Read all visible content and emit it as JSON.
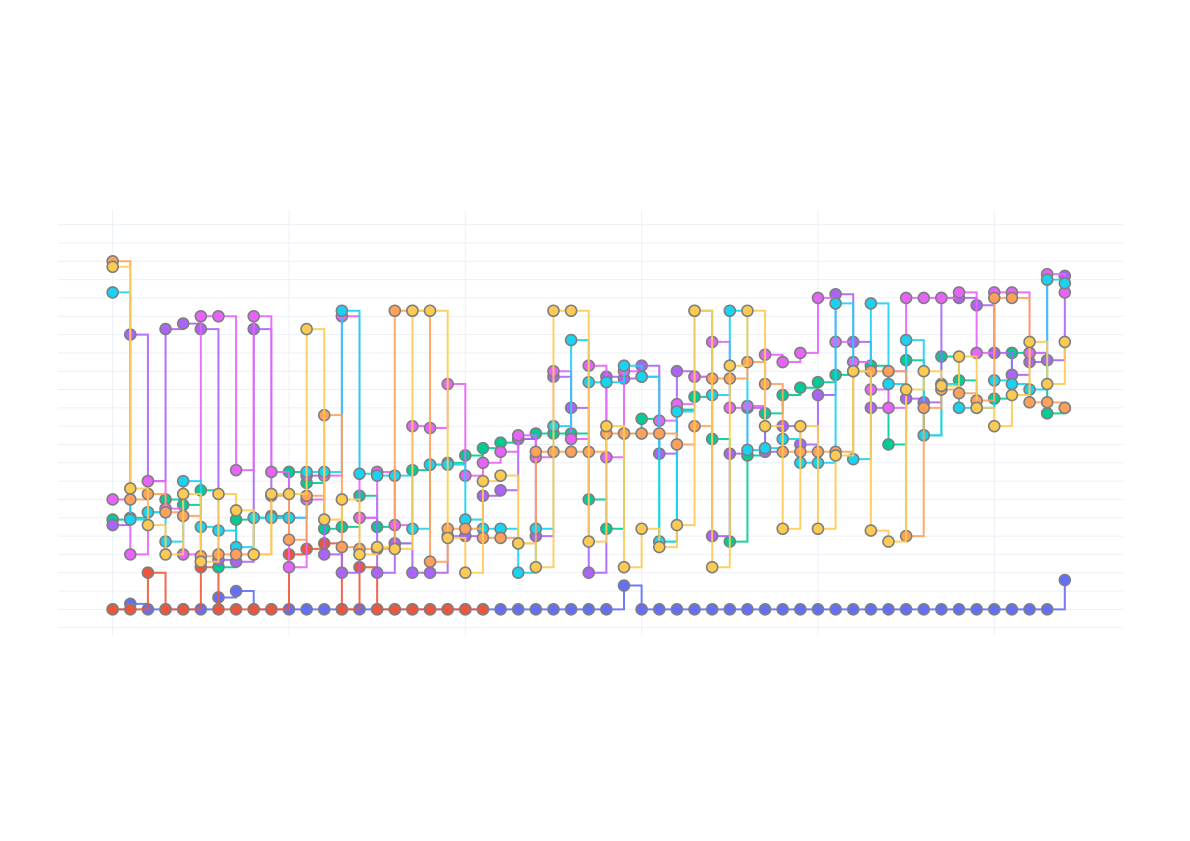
{
  "chart_data": {
    "type": "line",
    "line_shape": "step-hv",
    "markers": true,
    "marker_outline_color": "#7f7f7f",
    "grid": true,
    "grid_color": "#ebf0f8",
    "show_axis_tick_labels": false,
    "legend": "none",
    "title": "",
    "xlabel": "",
    "ylabel": "",
    "xlim": [
      -3.1,
      57.3
    ],
    "ylim": [
      -1.4,
      21.8
    ],
    "x_grid_step": 10,
    "y_grid_step": 1,
    "series": [
      {
        "color": "#636efa",
        "values": [
          0,
          0.3,
          0,
          0,
          0,
          0,
          0.65,
          1.0,
          0,
          0,
          0,
          0,
          0,
          0,
          0,
          0,
          0,
          0,
          0,
          0,
          0,
          0,
          0,
          0,
          0,
          0,
          0,
          0,
          0,
          1.3,
          0,
          0,
          0,
          0,
          0,
          0,
          0,
          0,
          0,
          0,
          0,
          0,
          0,
          0,
          0,
          0,
          0,
          0,
          0,
          0,
          0,
          0,
          0,
          0,
          1.6
        ]
      },
      {
        "color": "#EF553B",
        "values": [
          0,
          0,
          2.0,
          0,
          0,
          2.3,
          0,
          0,
          0,
          0,
          3.0,
          3.3,
          3.6,
          0,
          2.3,
          0,
          0,
          0,
          0,
          0,
          0,
          0
        ]
      },
      {
        "color": "#00cc96",
        "values": [
          4.9,
          5.0,
          5.3,
          6.0,
          5.7,
          6.5,
          2.3,
          4.9,
          5.0,
          5.1,
          7.5,
          6.9,
          4.4,
          4.5,
          6.2,
          4.5,
          3.6,
          7.6,
          7.9,
          8.0,
          8.4,
          8.8,
          9.1,
          9.3,
          9.6,
          9.6,
          9.6,
          6.0,
          4.4,
          9.6,
          10.4,
          3.7,
          10.9,
          11.6,
          9.3,
          3.7,
          8.4,
          10.7,
          11.7,
          12.1,
          12.4,
          12.8,
          13.0,
          13.3,
          9.0,
          13.6,
          9.5,
          13.8,
          12.5,
          11.0,
          11.5,
          14.0,
          14.0,
          10.7,
          11.0
        ]
      },
      {
        "color": "#ab63fa",
        "values": [
          4.6,
          15.0,
          7.0,
          15.3,
          15.6,
          15.3,
          2.7,
          2.6,
          15.3,
          5.0,
          5.0,
          7.3,
          3.0,
          2.0,
          5.0,
          2.0,
          3.6,
          2.0,
          2.0,
          4.0,
          4.0,
          6.2,
          6.5,
          9.3,
          4.0,
          12.7,
          11.0,
          2.0,
          12.7,
          12.6,
          13.3,
          8.5,
          13.0,
          12.7,
          4.0,
          8.5,
          11.0,
          8.6,
          10.0,
          9.0,
          11.7,
          17.2,
          14.6,
          11.0,
          13.0,
          11.5,
          11.3,
          17.0,
          17.0,
          16.6,
          14.0,
          12.8,
          13.5,
          13.6,
          18.2
        ]
      },
      {
        "color": "#e763fa",
        "values": [
          6.0,
          3.0,
          7.0,
          5.5,
          3.0,
          16.0,
          16.0,
          7.6,
          16.0,
          7.5,
          2.3,
          6.0,
          7.3,
          16.0,
          5.0,
          7.5,
          4.6,
          10.0,
          9.9,
          12.3,
          7.3,
          8.0,
          8.6,
          9.5,
          8.3,
          13.0,
          9.3,
          13.3,
          8.3,
          13.0,
          12.7,
          10.3,
          11.2,
          12.7,
          14.6,
          11.0,
          11.1,
          13.9,
          13.5,
          14.0,
          17.0,
          14.6,
          13.5,
          12.0,
          11.0,
          17.0,
          17.0,
          17.0,
          17.3,
          14.0,
          17.3,
          17.3,
          14.0,
          18.3,
          17.3
        ]
      },
      {
        "color": "#19d3f3",
        "values": [
          17.3,
          4.9,
          5.3,
          3.7,
          7.0,
          4.5,
          4.3,
          3.4,
          5.0,
          5.0,
          5.0,
          7.5,
          7.5,
          16.3,
          7.4,
          7.3,
          7.3,
          4.4,
          7.9,
          7.9,
          4.9,
          4.4,
          4.4,
          2.0,
          4.4,
          10.0,
          14.7,
          12.4,
          12.4,
          13.3,
          12.7,
          3.7,
          10.8,
          16.3,
          11.7,
          16.3,
          8.7,
          8.8,
          9.3,
          8.0,
          8.0,
          16.7,
          8.2,
          16.7,
          12.3,
          14.7,
          9.5,
          12.3,
          11.0,
          11.0,
          12.5,
          12.3,
          12.0,
          18.0,
          17.8
        ]
      },
      {
        "color": "#FFA15A",
        "values": [
          19.0,
          6.0,
          6.3,
          5.3,
          5.1,
          2.9,
          3.0,
          3.0,
          3.0,
          6.2,
          3.8,
          6.2,
          10.6,
          3.4,
          3.3,
          3.3,
          16.3,
          16.3,
          2.6,
          4.4,
          4.4,
          3.9,
          3.9,
          3.6,
          8.6,
          8.6,
          8.6,
          8.6,
          9.6,
          9.6,
          9.6,
          9.6,
          9.0,
          10.0,
          12.6,
          12.6,
          13.5,
          12.3,
          8.6,
          8.6,
          8.6,
          8.6,
          13.0,
          13.0,
          13.0,
          4.0,
          11.0,
          12.0,
          11.8,
          11.4,
          17.0,
          17.0,
          11.3,
          11.3,
          11.0
        ]
      },
      {
        "color": "#FECB52",
        "values": [
          18.7,
          6.6,
          4.6,
          3.0,
          6.3,
          2.6,
          6.3,
          5.4,
          3.0,
          6.3,
          6.3,
          15.3,
          4.9,
          6.0,
          3.0,
          3.4,
          3.3,
          16.3,
          16.3,
          3.9,
          2.0,
          7.0,
          7.3,
          3.6,
          2.3,
          16.3,
          16.3,
          3.7,
          10.0,
          2.3,
          4.4,
          3.4,
          4.6,
          16.3,
          2.3,
          13.3,
          16.3,
          10.0,
          4.4,
          10.0,
          4.4,
          8.4,
          13.0,
          4.3,
          3.7,
          12.0,
          13.0,
          12.2,
          13.8,
          11.0,
          10.0,
          11.7,
          14.6,
          12.3,
          14.6
        ]
      }
    ]
  }
}
